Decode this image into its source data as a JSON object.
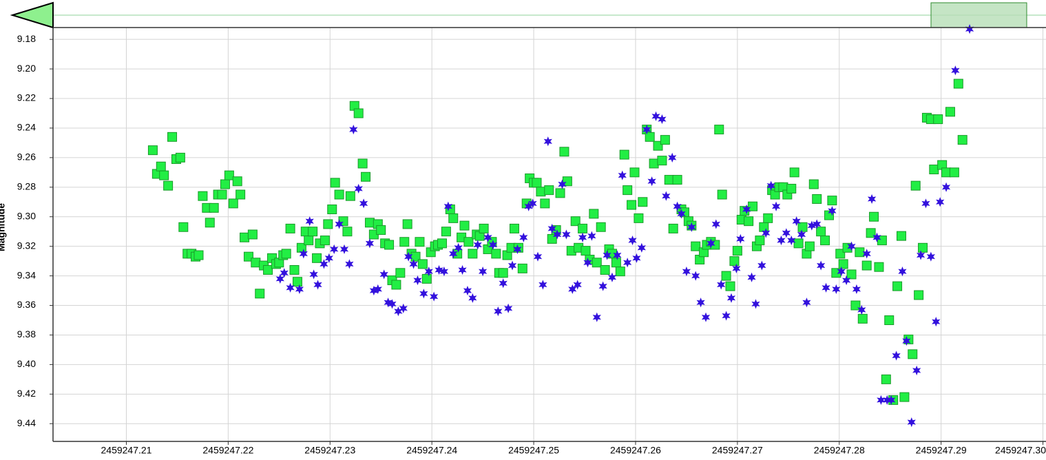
{
  "chart_data": {
    "type": "scatter",
    "y_label": "Magnitude",
    "xlim": [
      2459247.2028,
      2459247.3003
    ],
    "ylim": [
      9.452,
      9.172
    ],
    "xticks": [
      2459247.21,
      2459247.22,
      2459247.23,
      2459247.24,
      2459247.25,
      2459247.26,
      2459247.27,
      2459247.28,
      2459247.29,
      {
        "value": 2459247.3,
        "label": "2459247.30"
      }
    ],
    "yticks": [
      9.18,
      {
        "value": 9.2,
        "label": "9.20"
      },
      9.22,
      9.24,
      9.26,
      9.28,
      {
        "value": 9.3,
        "label": "9.30"
      },
      9.32,
      9.34,
      9.36,
      9.38,
      {
        "value": 9.4,
        "label": "9.40"
      },
      9.42,
      9.44
    ],
    "grid": true,
    "series": [
      {
        "marker": "square",
        "color": "#22ee44",
        "x": [
          2459247.2126,
          2459247.213,
          2459247.2134,
          2459247.2137,
          2459247.2141,
          2459247.2145,
          2459247.2149,
          2459247.2153,
          2459247.2156,
          2459247.216,
          2459247.2164,
          2459247.2168,
          2459247.2171,
          2459247.2175,
          2459247.2179,
          2459247.2182,
          2459247.2186,
          2459247.219,
          2459247.2194,
          2459247.2197,
          2459247.2201,
          2459247.2205,
          2459247.2209,
          2459247.2212,
          2459247.2216,
          2459247.222,
          2459247.2224,
          2459247.2227,
          2459247.2231,
          2459247.2235,
          2459247.2239,
          2459247.2243,
          2459247.2247,
          2459247.225,
          2459247.2254,
          2459247.2257,
          2459247.2261,
          2459247.2265,
          2459247.2268,
          2459247.2272,
          2459247.2276,
          2459247.2279,
          2459247.2283,
          2459247.2287,
          2459247.229,
          2459247.2295,
          2459247.2298,
          2459247.2302,
          2459247.2305,
          2459247.2309,
          2459247.2313,
          2459247.2317,
          2459247.232,
          2459247.2324,
          2459247.2328,
          2459247.2332,
          2459247.2335,
          2459247.2339,
          2459247.2343,
          2459247.2347,
          2459247.235,
          2459247.2354,
          2459247.2358,
          2459247.2361,
          2459247.2365,
          2459247.2369,
          2459247.2373,
          2459247.2376,
          2459247.238,
          2459247.2384,
          2459247.2388,
          2459247.2391,
          2459247.2395,
          2459247.2399,
          2459247.2403,
          2459247.2406,
          2459247.241,
          2459247.2414,
          2459247.2418,
          2459247.2421,
          2459247.2425,
          2459247.2429,
          2459247.2432,
          2459247.2436,
          2459247.244,
          2459247.2444,
          2459247.2447,
          2459247.2451,
          2459247.2455,
          2459247.2459,
          2459247.2463,
          2459247.2466,
          2459247.247,
          2459247.2474,
          2459247.2478,
          2459247.2481,
          2459247.2485,
          2459247.2489,
          2459247.2493,
          2459247.2496,
          2459247.25,
          2459247.2503,
          2459247.2507,
          2459247.2511,
          2459247.2515,
          2459247.2518,
          2459247.2522,
          2459247.2526,
          2459247.253,
          2459247.2533,
          2459247.2537,
          2459247.2541,
          2459247.2544,
          2459247.2548,
          2459247.2551,
          2459247.2555,
          2459247.2559,
          2459247.2562,
          2459247.2566,
          2459247.257,
          2459247.2574,
          2459247.2577,
          2459247.2581,
          2459247.2585,
          2459247.2589,
          2459247.2592,
          2459247.2596,
          2459247.2599,
          2459247.2603,
          2459247.2607,
          2459247.2611,
          2459247.2614,
          2459247.2618,
          2459247.2622,
          2459247.2626,
          2459247.2629,
          2459247.2633,
          2459247.2637,
          2459247.2641,
          2459247.2645,
          2459247.2648,
          2459247.2652,
          2459247.2655,
          2459247.2659,
          2459247.2663,
          2459247.2667,
          2459247.267,
          2459247.2674,
          2459247.2678,
          2459247.2682,
          2459247.2685,
          2459247.2689,
          2459247.2693,
          2459247.2697,
          2459247.27,
          2459247.2704,
          2459247.2707,
          2459247.2711,
          2459247.2715,
          2459247.2719,
          2459247.2722,
          2459247.2726,
          2459247.273,
          2459247.2734,
          2459247.2737,
          2459247.2741,
          2459247.2745,
          2459247.2749,
          2459247.2753,
          2459247.2756,
          2459247.276,
          2459247.2764,
          2459247.2768,
          2459247.2771,
          2459247.2775,
          2459247.2778,
          2459247.2782,
          2459247.2786,
          2459247.279,
          2459247.2793,
          2459247.2797,
          2459247.2801,
          2459247.2804,
          2459247.2808,
          2459247.2812,
          2459247.2816,
          2459247.282,
          2459247.2823,
          2459247.2827,
          2459247.2831,
          2459247.2834,
          2459247.2839,
          2459247.2842,
          2459247.2846,
          2459247.2849,
          2459247.2853,
          2459247.2857,
          2459247.2861,
          2459247.2864,
          2459247.2868,
          2459247.2872,
          2459247.2875,
          2459247.2878,
          2459247.2882,
          2459247.2886,
          2459247.289,
          2459247.2893,
          2459247.2897,
          2459247.2901,
          2459247.2905,
          2459247.2909,
          2459247.2913,
          2459247.2917,
          2459247.2921
        ],
        "values": [
          9.255,
          9.271,
          9.266,
          9.272,
          9.279,
          9.246,
          9.261,
          9.26,
          9.307,
          9.325,
          9.325,
          9.327,
          9.326,
          9.286,
          9.294,
          9.304,
          9.294,
          9.285,
          9.285,
          9.278,
          9.272,
          9.291,
          9.276,
          9.285,
          9.314,
          9.327,
          9.312,
          9.331,
          9.352,
          9.333,
          9.336,
          9.328,
          9.332,
          9.331,
          9.326,
          9.325,
          9.308,
          9.336,
          9.344,
          9.321,
          9.31,
          9.316,
          9.31,
          9.328,
          9.318,
          9.316,
          9.305,
          9.295,
          9.277,
          9.285,
          9.303,
          9.31,
          9.286,
          9.225,
          9.23,
          9.264,
          9.273,
          9.304,
          9.312,
          9.305,
          9.309,
          9.318,
          9.319,
          9.343,
          9.346,
          9.338,
          9.317,
          9.305,
          9.325,
          9.327,
          9.317,
          9.332,
          9.342,
          9.324,
          9.32,
          9.319,
          9.318,
          9.31,
          9.295,
          9.301,
          9.325,
          9.314,
          9.306,
          9.317,
          9.325,
          9.312,
          9.313,
          9.308,
          9.322,
          9.317,
          9.325,
          9.338,
          9.338,
          9.326,
          9.321,
          9.308,
          9.321,
          9.335,
          9.291,
          9.274,
          9.277,
          9.277,
          9.283,
          9.291,
          9.282,
          9.315,
          9.309,
          9.284,
          9.256,
          9.276,
          9.323,
          9.303,
          9.321,
          9.308,
          9.323,
          9.329,
          9.298,
          9.331,
          9.307,
          9.336,
          9.322,
          9.325,
          9.331,
          9.337,
          9.258,
          9.282,
          9.292,
          9.27,
          9.301,
          9.29,
          9.241,
          9.246,
          9.264,
          9.252,
          9.262,
          9.248,
          9.275,
          9.308,
          9.275,
          9.295,
          9.297,
          9.303,
          9.306,
          9.32,
          9.329,
          9.324,
          9.319,
          9.317,
          9.319,
          9.241,
          9.285,
          9.34,
          9.347,
          9.33,
          9.323,
          9.302,
          9.296,
          9.303,
          9.293,
          9.32,
          9.316,
          9.307,
          9.301,
          9.282,
          9.285,
          9.28,
          9.28,
          9.285,
          9.281,
          9.27,
          9.318,
          9.307,
          9.325,
          9.32,
          9.278,
          9.288,
          9.31,
          9.316,
          9.299,
          9.289,
          9.338,
          9.325,
          9.332,
          9.321,
          9.339,
          9.36,
          9.324,
          9.369,
          9.333,
          9.311,
          9.3,
          9.334,
          9.316,
          9.41,
          9.37,
          9.424,
          9.347,
          9.313,
          9.422,
          9.383,
          9.393,
          9.279,
          9.353,
          9.321,
          9.233,
          9.234,
          9.268,
          9.234,
          9.265,
          9.27,
          9.229,
          9.27,
          9.21,
          9.248
        ]
      },
      {
        "marker": "star",
        "color": "#3311dd",
        "x": [
          2459247.2251,
          2459247.2255,
          2459247.2261,
          2459247.227,
          2459247.2274,
          2459247.228,
          2459247.2284,
          2459247.2288,
          2459247.2294,
          2459247.2299,
          2459247.2304,
          2459247.2309,
          2459247.2314,
          2459247.2319,
          2459247.2323,
          2459247.2328,
          2459247.2333,
          2459247.2339,
          2459247.2343,
          2459247.2347,
          2459247.2353,
          2459247.2357,
          2459247.2361,
          2459247.2367,
          2459247.2372,
          2459247.2377,
          2459247.2382,
          2459247.2386,
          2459247.2392,
          2459247.2397,
          2459247.2402,
          2459247.2407,
          2459247.2412,
          2459247.2416,
          2459247.2421,
          2459247.2426,
          2459247.243,
          2459247.2435,
          2459247.244,
          2459247.2445,
          2459247.245,
          2459247.2455,
          2459247.246,
          2459247.2465,
          2459247.247,
          2459247.2475,
          2459247.2479,
          2459247.2484,
          2459247.249,
          2459247.2495,
          2459247.2499,
          2459247.2504,
          2459247.2509,
          2459247.2514,
          2459247.2518,
          2459247.2523,
          2459247.2528,
          2459247.2532,
          2459247.2538,
          2459247.2543,
          2459247.2548,
          2459247.2553,
          2459247.2557,
          2459247.2562,
          2459247.2568,
          2459247.2572,
          2459247.2577,
          2459247.2582,
          2459247.2587,
          2459247.2592,
          2459247.2597,
          2459247.2601,
          2459247.2606,
          2459247.2611,
          2459247.2616,
          2459247.262,
          2459247.2626,
          2459247.263,
          2459247.2636,
          2459247.2641,
          2459247.2645,
          2459247.265,
          2459247.2655,
          2459247.2659,
          2459247.2664,
          2459247.2669,
          2459247.2674,
          2459247.2679,
          2459247.2684,
          2459247.2689,
          2459247.2694,
          2459247.2699,
          2459247.2703,
          2459247.2709,
          2459247.2714,
          2459247.2718,
          2459247.2724,
          2459247.2728,
          2459247.2733,
          2459247.2738,
          2459247.2743,
          2459247.2748,
          2459247.2753,
          2459247.2758,
          2459247.2763,
          2459247.2768,
          2459247.2773,
          2459247.2778,
          2459247.2782,
          2459247.2787,
          2459247.2793,
          2459247.2797,
          2459247.2802,
          2459247.2807,
          2459247.2812,
          2459247.2817,
          2459247.2822,
          2459247.2827,
          2459247.2832,
          2459247.2837,
          2459247.2841,
          2459247.2847,
          2459247.2851,
          2459247.2856,
          2459247.2862,
          2459247.2866,
          2459247.2871,
          2459247.2876,
          2459247.288,
          2459247.2885,
          2459247.289,
          2459247.2895,
          2459247.2899,
          2459247.2905,
          2459247.2914,
          2459247.2928
        ],
        "values": [
          9.342,
          9.338,
          9.348,
          9.349,
          9.325,
          9.303,
          9.339,
          9.346,
          9.332,
          9.328,
          9.322,
          9.305,
          9.322,
          9.332,
          9.241,
          9.281,
          9.291,
          9.318,
          9.35,
          9.349,
          9.339,
          9.358,
          9.359,
          9.364,
          9.362,
          9.327,
          9.332,
          9.343,
          9.352,
          9.337,
          9.354,
          9.336,
          9.337,
          9.293,
          9.325,
          9.321,
          9.336,
          9.35,
          9.355,
          9.319,
          9.337,
          9.314,
          9.319,
          9.364,
          9.345,
          9.362,
          9.333,
          9.322,
          9.314,
          9.293,
          9.291,
          9.327,
          9.346,
          9.249,
          9.308,
          9.312,
          9.278,
          9.312,
          9.349,
          9.346,
          9.314,
          9.331,
          9.313,
          9.368,
          9.347,
          9.326,
          9.341,
          9.326,
          9.272,
          9.331,
          9.316,
          9.328,
          9.321,
          9.241,
          9.276,
          9.232,
          9.234,
          9.286,
          9.26,
          9.293,
          9.298,
          9.337,
          9.307,
          9.34,
          9.358,
          9.368,
          9.318,
          9.305,
          9.346,
          9.367,
          9.355,
          9.335,
          9.315,
          9.295,
          9.341,
          9.359,
          9.333,
          9.311,
          9.279,
          9.293,
          9.316,
          9.311,
          9.316,
          9.303,
          9.312,
          9.358,
          9.306,
          9.305,
          9.333,
          9.348,
          9.296,
          9.349,
          9.337,
          9.343,
          9.32,
          9.349,
          9.363,
          9.325,
          9.288,
          9.314,
          9.424,
          9.424,
          9.424,
          9.394,
          9.337,
          9.384,
          9.439,
          9.404,
          9.326,
          9.291,
          9.327,
          9.371,
          9.29,
          9.28,
          9.201,
          9.173
        ]
      }
    ]
  }
}
